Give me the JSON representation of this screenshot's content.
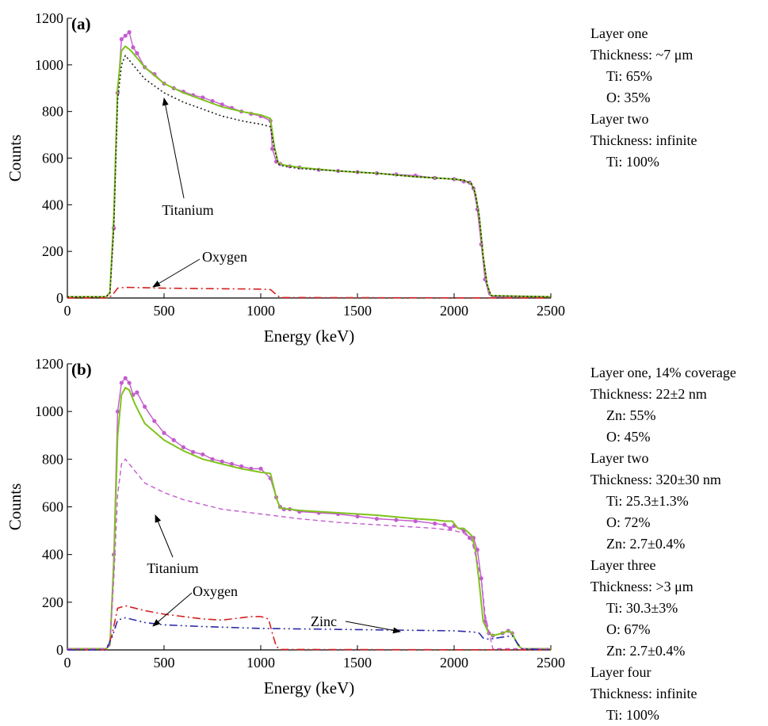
{
  "colors": {
    "measured": "#c45ccf",
    "fit": "#7fc31c",
    "titanium_a": "#222222",
    "titanium_b": "#c45ccf",
    "oxygen": "#d62020",
    "zinc": "#2a2aa8"
  },
  "chart_data": [
    {
      "type": "line",
      "panel_label": "(a)",
      "xlabel": "Energy (keV)",
      "ylabel": "Counts",
      "xlim": [
        0,
        2500
      ],
      "ylim": [
        0,
        1200
      ],
      "xticks": [
        0,
        500,
        1000,
        1500,
        2000,
        2500
      ],
      "yticks": [
        0,
        200,
        400,
        600,
        800,
        1000,
        1200
      ],
      "series": [
        {
          "style": "measured",
          "x": [
            0,
            200,
            220,
            240,
            260,
            280,
            300,
            320,
            340,
            360,
            400,
            450,
            500,
            550,
            600,
            650,
            700,
            750,
            800,
            850,
            900,
            950,
            1000,
            1050,
            1060,
            1080,
            1100,
            1150,
            1200,
            1300,
            1400,
            1500,
            1600,
            1700,
            1800,
            1900,
            2000,
            2050,
            2080,
            2100,
            2120,
            2140,
            2160,
            2180,
            2200,
            2500
          ],
          "y": [
            5,
            5,
            20,
            300,
            880,
            1110,
            1125,
            1140,
            1075,
            1050,
            990,
            960,
            920,
            900,
            885,
            870,
            860,
            845,
            830,
            815,
            800,
            790,
            780,
            760,
            640,
            585,
            575,
            565,
            560,
            550,
            545,
            540,
            535,
            530,
            525,
            515,
            510,
            500,
            495,
            470,
            380,
            230,
            80,
            15,
            5,
            5
          ]
        },
        {
          "style": "fit",
          "x": [
            0,
            200,
            220,
            240,
            260,
            280,
            300,
            330,
            360,
            400,
            500,
            600,
            700,
            800,
            900,
            1000,
            1050,
            1070,
            1090,
            1120,
            1200,
            1400,
            1600,
            1800,
            2000,
            2050,
            2090,
            2110,
            2130,
            2150,
            2170,
            2190,
            2500
          ],
          "y": [
            5,
            5,
            25,
            350,
            900,
            1060,
            1080,
            1060,
            1030,
            990,
            920,
            880,
            850,
            820,
            800,
            785,
            770,
            650,
            580,
            570,
            560,
            545,
            535,
            520,
            510,
            505,
            490,
            450,
            350,
            180,
            60,
            10,
            5
          ]
        },
        {
          "style": "titanium_a",
          "x": [
            0,
            200,
            220,
            240,
            260,
            280,
            300,
            330,
            360,
            400,
            500,
            600,
            700,
            800,
            900,
            1000,
            1050,
            1070,
            1090,
            1120,
            1200,
            1400,
            1600,
            1800,
            2000,
            2050,
            2090,
            2110,
            2130,
            2150,
            2170,
            2190,
            2500
          ],
          "y": [
            5,
            5,
            20,
            300,
            850,
            1000,
            1040,
            1010,
            980,
            940,
            880,
            840,
            810,
            780,
            760,
            745,
            735,
            640,
            575,
            565,
            555,
            545,
            535,
            520,
            510,
            505,
            490,
            450,
            350,
            180,
            60,
            10,
            5
          ]
        },
        {
          "style": "oxygen",
          "x": [
            0,
            200,
            230,
            260,
            300,
            500,
            1000,
            1050,
            1080,
            1100,
            2500
          ],
          "y": [
            0,
            0,
            10,
            42,
            46,
            42,
            38,
            36,
            15,
            2,
            0
          ]
        }
      ],
      "annotations": [
        "Titanium",
        "Oxygen"
      ]
    },
    {
      "type": "line",
      "panel_label": "(b)",
      "xlabel": "Energy (keV)",
      "ylabel": "Counts",
      "xlim": [
        0,
        2500
      ],
      "ylim": [
        0,
        1200
      ],
      "xticks": [
        0,
        500,
        1000,
        1500,
        2000,
        2500
      ],
      "yticks": [
        0,
        200,
        400,
        600,
        800,
        1000,
        1200
      ],
      "series": [
        {
          "style": "measured",
          "x": [
            0,
            200,
            220,
            240,
            260,
            280,
            300,
            320,
            340,
            360,
            400,
            450,
            500,
            550,
            600,
            650,
            700,
            750,
            800,
            850,
            900,
            950,
            1000,
            1050,
            1080,
            1100,
            1120,
            1150,
            1200,
            1300,
            1400,
            1500,
            1600,
            1700,
            1800,
            1900,
            1950,
            1980,
            2000,
            2050,
            2080,
            2100,
            2120,
            2140,
            2160,
            2180,
            2200,
            2250,
            2280,
            2300,
            2330,
            2350,
            2500
          ],
          "y": [
            5,
            5,
            20,
            400,
            1000,
            1120,
            1140,
            1120,
            1070,
            1080,
            1020,
            960,
            910,
            880,
            850,
            830,
            820,
            800,
            790,
            780,
            770,
            760,
            760,
            720,
            640,
            600,
            590,
            590,
            580,
            575,
            570,
            560,
            550,
            545,
            540,
            530,
            525,
            510,
            520,
            500,
            470,
            470,
            420,
            300,
            120,
            70,
            60,
            70,
            80,
            70,
            20,
            5,
            5
          ]
        },
        {
          "style": "fit",
          "x": [
            0,
            200,
            220,
            240,
            260,
            280,
            300,
            320,
            350,
            400,
            500,
            600,
            700,
            800,
            900,
            1000,
            1050,
            1080,
            1100,
            1150,
            1200,
            1400,
            1600,
            1800,
            1900,
            1950,
            1990,
            2020,
            2050,
            2090,
            2110,
            2130,
            2150,
            2180,
            2200,
            2250,
            2280,
            2300,
            2330,
            2350,
            2500
          ],
          "y": [
            5,
            5,
            20,
            350,
            900,
            1070,
            1100,
            1090,
            1030,
            950,
            880,
            835,
            800,
            780,
            760,
            745,
            740,
            640,
            595,
            590,
            585,
            575,
            565,
            550,
            545,
            540,
            540,
            510,
            510,
            480,
            420,
            280,
            120,
            70,
            60,
            70,
            80,
            70,
            20,
            5,
            5
          ]
        },
        {
          "style": "titanium_b",
          "x": [
            0,
            200,
            220,
            240,
            260,
            280,
            300,
            330,
            360,
            400,
            500,
            600,
            700,
            800,
            900,
            1000,
            1100,
            1200,
            1400,
            1600,
            1800,
            1900,
            2000,
            2050,
            2090,
            2110,
            2140,
            2160,
            2200,
            2500
          ],
          "y": [
            5,
            5,
            20,
            300,
            650,
            780,
            800,
            770,
            740,
            700,
            660,
            630,
            610,
            590,
            580,
            570,
            560,
            550,
            535,
            525,
            515,
            510,
            500,
            490,
            460,
            400,
            300,
            150,
            5,
            5
          ]
        },
        {
          "style": "oxygen",
          "x": [
            0,
            200,
            230,
            260,
            300,
            400,
            500,
            600,
            700,
            800,
            900,
            950,
            1000,
            1040,
            1060,
            1080,
            1100,
            2500
          ],
          "y": [
            0,
            0,
            60,
            175,
            185,
            165,
            150,
            140,
            130,
            125,
            135,
            140,
            140,
            130,
            70,
            15,
            2,
            0
          ]
        },
        {
          "style": "zinc",
          "x": [
            0,
            200,
            230,
            260,
            300,
            400,
            500,
            700,
            1000,
            1500,
            2000,
            2100,
            2130,
            2150,
            2180,
            2300,
            2330,
            2350,
            2500
          ],
          "y": [
            0,
            0,
            50,
            125,
            135,
            115,
            105,
            98,
            90,
            85,
            80,
            75,
            70,
            50,
            45,
            60,
            25,
            5,
            0
          ]
        }
      ],
      "annotations": [
        "Titanium",
        "Oxygen",
        "Zinc"
      ]
    }
  ],
  "side_text": {
    "a": [
      {
        "text": "Layer one",
        "indent": false
      },
      {
        "text": "Thickness: ~7 μm",
        "indent": false
      },
      {
        "text": "Ti: 65%",
        "indent": true
      },
      {
        "text": "O: 35%",
        "indent": true
      },
      {
        "text": "Layer two",
        "indent": false
      },
      {
        "text": "Thickness: infinite",
        "indent": false
      },
      {
        "text": "Ti: 100%",
        "indent": true
      }
    ],
    "b": [
      {
        "text": "Layer one, 14% coverage",
        "indent": false
      },
      {
        "text": "Thickness: 22±2 nm",
        "indent": false
      },
      {
        "text": "Zn: 55%",
        "indent": true
      },
      {
        "text": "O: 45%",
        "indent": true
      },
      {
        "text": "Layer two",
        "indent": false
      },
      {
        "text": "Thickness: 320±30 nm",
        "indent": false
      },
      {
        "text": "Ti: 25.3±1.3%",
        "indent": true
      },
      {
        "text": "O: 72%",
        "indent": true
      },
      {
        "text": "Zn: 2.7±0.4%",
        "indent": true
      },
      {
        "text": "Layer three",
        "indent": false
      },
      {
        "text": "Thickness: >3 μm",
        "indent": false
      },
      {
        "text": "Ti: 30.3±3%",
        "indent": true
      },
      {
        "text": "O: 67%",
        "indent": true
      },
      {
        "text": "Zn: 2.7±0.4%",
        "indent": true
      },
      {
        "text": "Layer four",
        "indent": false
      },
      {
        "text": "Thickness: infinite",
        "indent": false
      },
      {
        "text": "Ti: 100%",
        "indent": true
      }
    ]
  }
}
